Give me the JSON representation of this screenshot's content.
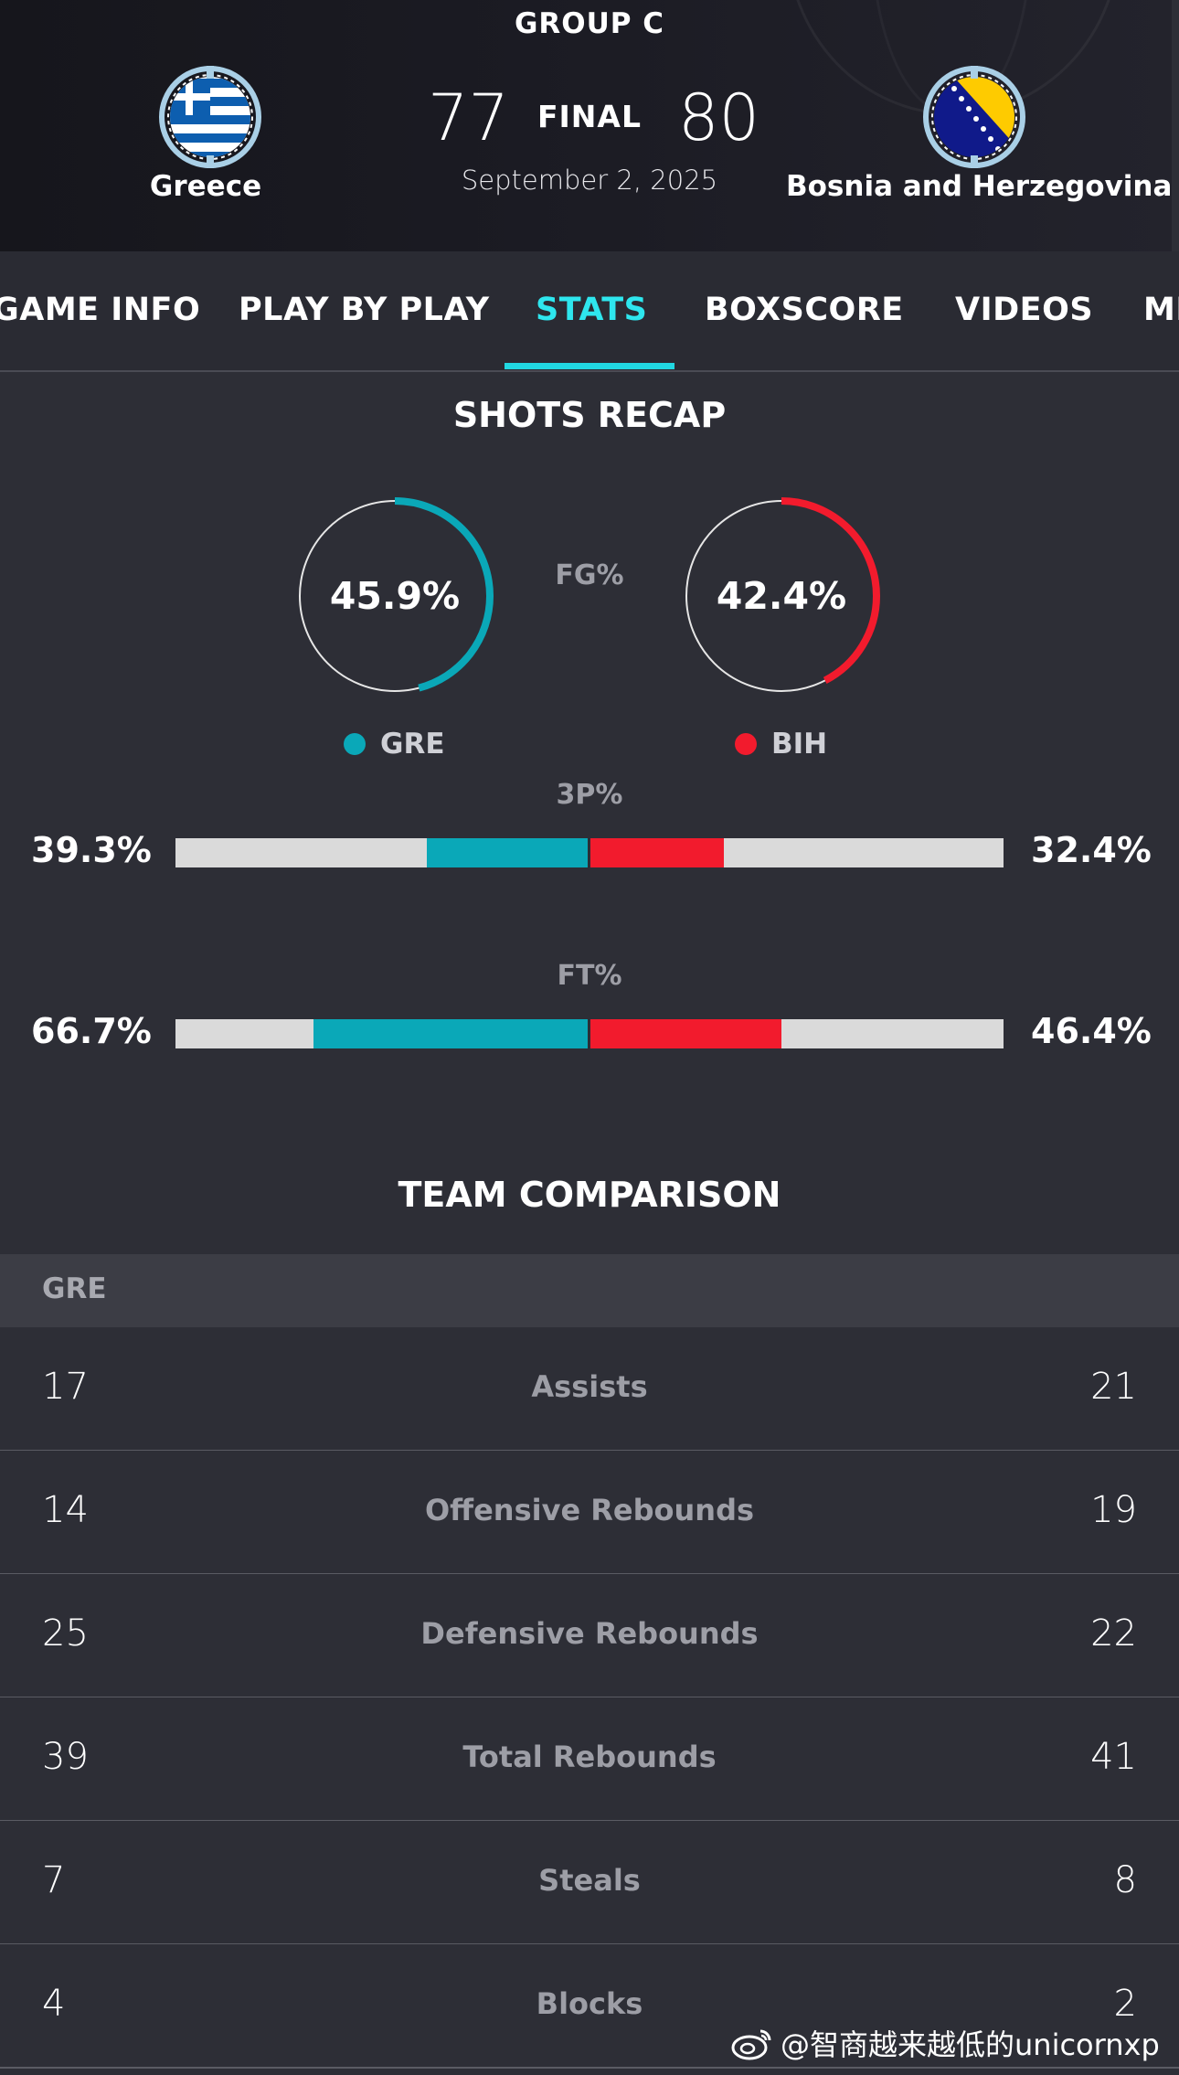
{
  "game": {
    "group": "GROUP C",
    "status": "FINAL",
    "date": "September 2, 2025",
    "home": {
      "name": "Greece",
      "abbr": "GRE",
      "score": "77",
      "flag_icon": "greece-flag-icon",
      "color": "#0aa8b8"
    },
    "away": {
      "name": "Bosnia and Herzegovina",
      "abbr": "BIH",
      "score": "80",
      "flag_icon": "bosnia-flag-icon",
      "color": "#f21b2d"
    }
  },
  "tabs": [
    {
      "label": "GAME INFO",
      "active": false
    },
    {
      "label": "PLAY BY PLAY",
      "active": false
    },
    {
      "label": "STATS",
      "active": true
    },
    {
      "label": "BOXSCORE",
      "active": false
    },
    {
      "label": "VIDEOS",
      "active": false
    },
    {
      "label": "ME",
      "active": false
    }
  ],
  "shots_recap": {
    "title": "SHOTS RECAP",
    "fg": {
      "label": "FG%",
      "home": "45.9%",
      "away": "42.4%",
      "home_value": 45.9,
      "away_value": 42.4
    },
    "three": {
      "label": "3P%",
      "home": "39.3%",
      "away": "32.4%",
      "home_value": 39.3,
      "away_value": 32.4
    },
    "ft": {
      "label": "FT%",
      "home": "66.7%",
      "away": "46.4%",
      "home_value": 66.7,
      "away_value": 46.4
    }
  },
  "team_comparison": {
    "title": "TEAM COMPARISON",
    "header": "GRE",
    "rows": [
      {
        "label": "Assists",
        "home": "17",
        "away": "21"
      },
      {
        "label": "Offensive Rebounds",
        "home": "14",
        "away": "19"
      },
      {
        "label": "Defensive Rebounds",
        "home": "25",
        "away": "22"
      },
      {
        "label": "Total Rebounds",
        "home": "39",
        "away": "41"
      },
      {
        "label": "Steals",
        "home": "7",
        "away": "8"
      },
      {
        "label": "Blocks",
        "home": "4",
        "away": "2"
      }
    ]
  },
  "watermark": {
    "text": "@智商越来越低的unicornxp",
    "icon": "weibo-icon"
  }
}
